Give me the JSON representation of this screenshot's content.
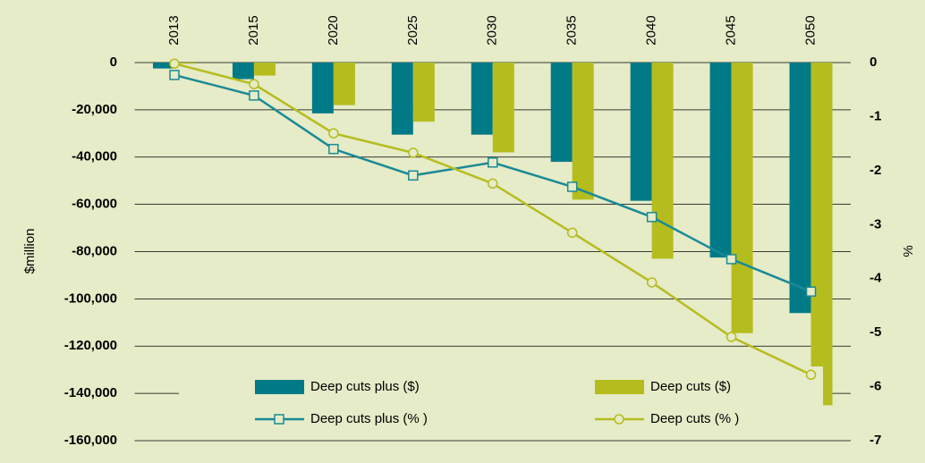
{
  "chart_data": {
    "type": "bar",
    "categories": [
      "2013",
      "2015",
      "2020",
      "2025",
      "2030",
      "2035",
      "2040",
      "2045",
      "2050"
    ],
    "series": [
      {
        "name": "Deep cuts plus ($)",
        "type": "bar",
        "color": "#007a87",
        "values": [
          -2500,
          -7000,
          -21500,
          -30500,
          -30500,
          -42000,
          -58500,
          -82500,
          -106000
        ]
      },
      {
        "name": "Deep cuts ($)",
        "type": "bar",
        "color": "#b5bd1e",
        "values": [
          -500,
          -5500,
          -18000,
          -25000,
          -38000,
          -58000,
          -83000,
          -114500,
          -145000
        ]
      },
      {
        "name": "Deep cuts plus (% )",
        "type": "line",
        "axis": "y2",
        "marker": "square",
        "color": "#1a8a96",
        "values": [
          -0.23,
          -0.61,
          -1.6,
          -2.09,
          -1.85,
          -2.3,
          -2.86,
          -3.64,
          -4.24
        ]
      },
      {
        "name": "Deep cuts (% )",
        "type": "line",
        "axis": "y2",
        "marker": "circle",
        "color": "#b5bd1e",
        "values": [
          -0.02,
          -0.4,
          -1.31,
          -1.67,
          -2.24,
          -3.15,
          -4.07,
          -5.08,
          -5.78
        ]
      }
    ],
    "ylabel": "$million",
    "y2label": "%",
    "ylim": [
      -160000,
      0
    ],
    "yticks": [
      {
        "value": 0,
        "label": "0"
      },
      {
        "value": -20000,
        "label": "-20,000"
      },
      {
        "value": -40000,
        "label": "-40,000"
      },
      {
        "value": -60000,
        "label": "-60,000"
      },
      {
        "value": -80000,
        "label": "-80,000"
      },
      {
        "value": -100000,
        "label": "-100,000"
      },
      {
        "value": -120000,
        "label": "-120,000"
      },
      {
        "value": -140000,
        "label": "-140,000"
      },
      {
        "value": -160000,
        "label": "-160,000"
      }
    ],
    "y2lim": [
      -7,
      0
    ],
    "y2ticks": [
      0,
      -1,
      -2,
      -3,
      -4,
      -5,
      -6,
      -7
    ],
    "grid": true
  }
}
